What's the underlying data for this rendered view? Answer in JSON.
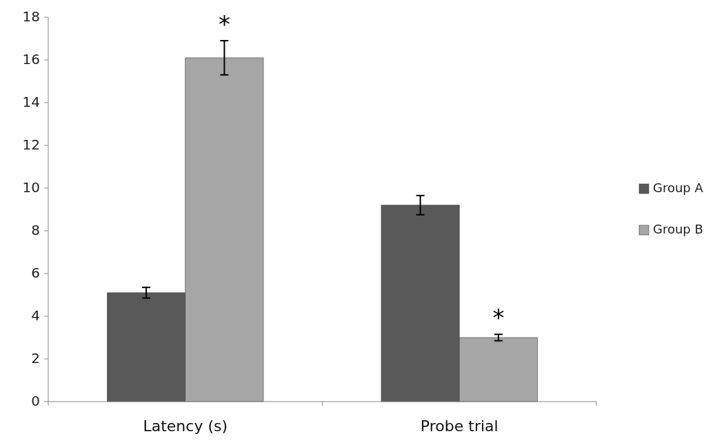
{
  "chart_data": {
    "type": "bar",
    "categories": [
      "Latency (s)",
      "Probe trial"
    ],
    "series": [
      {
        "name": "Group A",
        "color": "#595959",
        "values": [
          5.1,
          9.2
        ],
        "errors": [
          0.25,
          0.45
        ]
      },
      {
        "name": "Group B",
        "color": "#a6a6a6",
        "values": [
          16.1,
          3.0
        ],
        "errors": [
          0.8,
          0.15
        ]
      }
    ],
    "ylim": [
      0,
      18
    ],
    "yticks": [
      0,
      2,
      4,
      6,
      8,
      10,
      12,
      14,
      16,
      18
    ],
    "grid": false,
    "legend": "right",
    "annotations": [
      "*",
      "*"
    ]
  }
}
